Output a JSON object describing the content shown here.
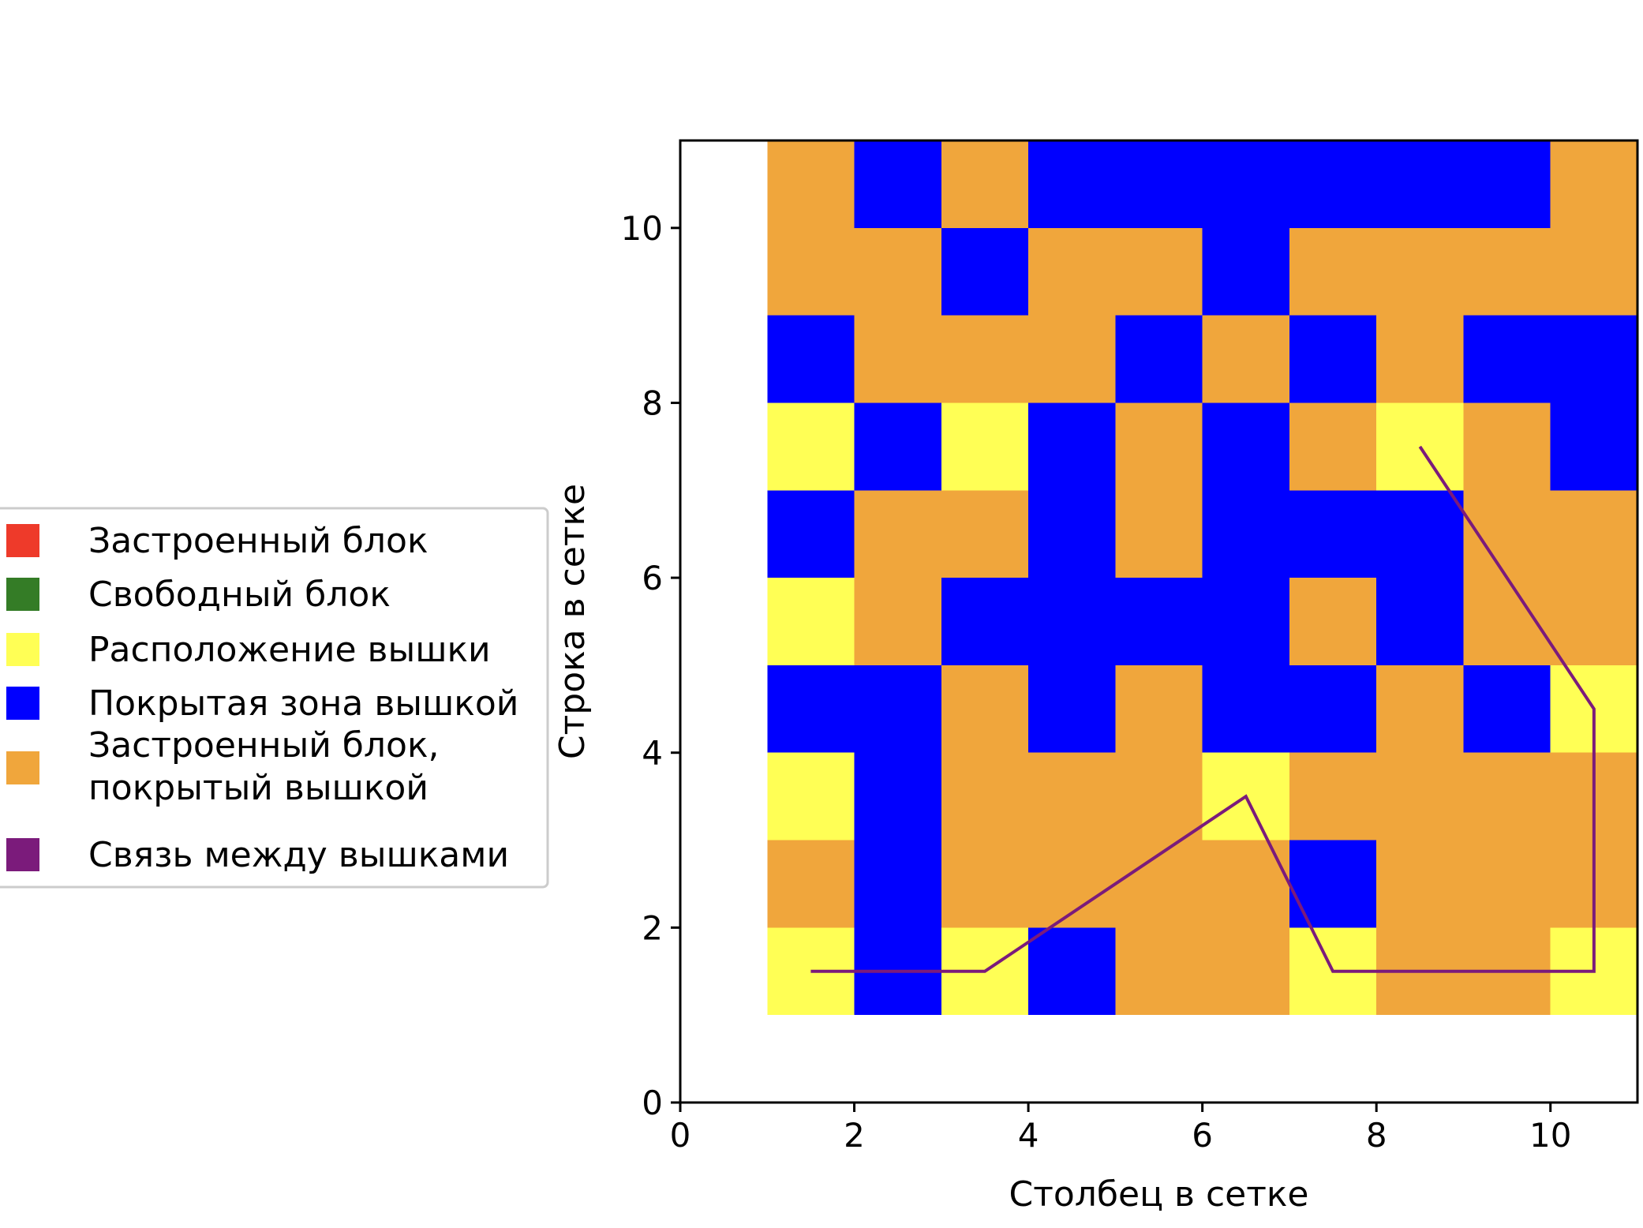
{
  "chart_data": {
    "type": "heatmap",
    "title": "",
    "xlabel": "Столбец в сетке",
    "ylabel": "Строка в сетке",
    "xlim": [
      0,
      11
    ],
    "ylim": [
      0,
      11
    ],
    "xticks": [
      "0",
      "2",
      "4",
      "6",
      "8",
      "10"
    ],
    "yticks": [
      "0",
      "2",
      "4",
      "6",
      "8",
      "10"
    ],
    "grid": false,
    "legend_position": "left-center",
    "categories": {
      "O": {
        "label": "Застроенный блок, покрытый вышкой",
        "color": "#f0a63c"
      },
      "B": {
        "label": "Покрытая зона вышкой",
        "color": "#0000ff"
      },
      "Y": {
        "label": "Расположение вышки",
        "color": "#ffff55"
      }
    },
    "cells_rows_top_to_bottom": [
      [
        "O",
        "B",
        "O",
        "B",
        "B",
        "B",
        "B",
        "B",
        "B",
        "O"
      ],
      [
        "O",
        "O",
        "B",
        "O",
        "O",
        "B",
        "O",
        "O",
        "O",
        "O"
      ],
      [
        "B",
        "O",
        "O",
        "O",
        "B",
        "O",
        "B",
        "O",
        "B",
        "B"
      ],
      [
        "Y",
        "B",
        "Y",
        "B",
        "O",
        "B",
        "O",
        "Y",
        "O",
        "B"
      ],
      [
        "B",
        "O",
        "O",
        "B",
        "O",
        "B",
        "B",
        "B",
        "O",
        "O"
      ],
      [
        "Y",
        "O",
        "B",
        "B",
        "B",
        "B",
        "O",
        "B",
        "O",
        "O"
      ],
      [
        "B",
        "B",
        "O",
        "B",
        "O",
        "B",
        "B",
        "O",
        "B",
        "Y"
      ],
      [
        "Y",
        "B",
        "O",
        "O",
        "O",
        "Y",
        "O",
        "O",
        "O",
        "O"
      ],
      [
        "O",
        "B",
        "O",
        "O",
        "O",
        "O",
        "B",
        "O",
        "O",
        "O"
      ],
      [
        "Y",
        "B",
        "Y",
        "B",
        "O",
        "O",
        "Y",
        "O",
        "O",
        "Y"
      ]
    ],
    "grid_origin": [
      1,
      1
    ],
    "series": [
      {
        "color": "#7b1b7b",
        "segments": [
          [
            [
              1.5,
              1.5
            ],
            [
              3.5,
              1.5
            ],
            [
              6.5,
              3.5
            ],
            [
              7.5,
              1.5
            ],
            [
              10.5,
              1.5
            ],
            [
              10.5,
              4.5
            ],
            [
              8.5,
              7.5
            ]
          ]
        ]
      }
    ],
    "legend": [
      {
        "label": "Застроенный блок",
        "color": "#ee3a2a"
      },
      {
        "label": "Свободный блок",
        "color": "#347c26"
      },
      {
        "label": "Расположение вышки",
        "color": "#ffff55"
      },
      {
        "label": "Покрытая зона вышкой",
        "color": "#0000ff"
      },
      {
        "label": "Застроенный блок, покрытый вышкой",
        "lines": [
          "Застроенный блок,",
          "покрытый вышкой"
        ],
        "color": "#f0a63c"
      },
      {
        "label": "Связь между вышками",
        "color": "#7b1b7b"
      }
    ]
  }
}
